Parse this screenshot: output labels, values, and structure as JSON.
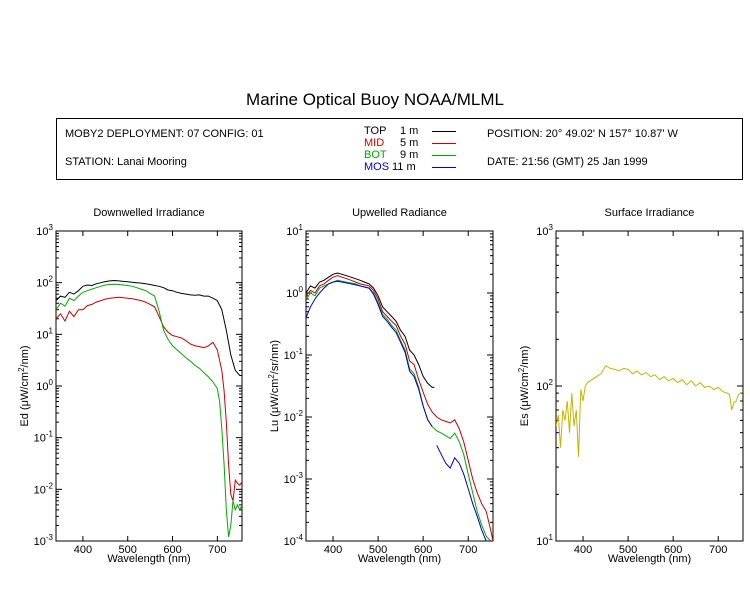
{
  "title": "Marine Optical Buoy NOAA/MLML",
  "info": {
    "deployment": "MOBY2 DEPLOYMENT: 07 CONFIG: 01",
    "station": "STATION: Lanai Mooring",
    "position": "POSITION: 20° 49.02' N   157° 10.87' W",
    "date": "DATE: 21:56 (GMT) 25 Jan 1999"
  },
  "legend": [
    {
      "name": "TOP",
      "depth": "1  m",
      "color": "#000000"
    },
    {
      "name": "MID",
      "depth": "5  m",
      "color": "#cc0000"
    },
    {
      "name": "BOT",
      "depth": "9  m",
      "color": "#00aa00"
    },
    {
      "name": "MOS",
      "depth": "11  m",
      "color": "#0000cc"
    }
  ],
  "chart_data": [
    {
      "type": "line",
      "title": "Downwelled Irradiance",
      "xlabel": "Wavelength (nm)",
      "ylabel_main": "Ed  (",
      "ylabel_mu": "μ",
      "ylabel_rest": "W/cm",
      "ylabel_exp": "2",
      "ylabel_end": "/nm)",
      "xlim": [
        340,
        755
      ],
      "ylim": [
        0.001,
        1000
      ],
      "yscale": "log",
      "xticks": [
        400,
        500,
        600,
        700
      ],
      "yticks": [
        {
          "base": "10",
          "exp": "-3",
          "value": 0.001
        },
        {
          "base": "10",
          "exp": "-2",
          "value": 0.01
        },
        {
          "base": "10",
          "exp": "-1",
          "value": 0.1
        },
        {
          "base": "10",
          "exp": "0",
          "value": 1
        },
        {
          "base": "10",
          "exp": "1",
          "value": 10
        },
        {
          "base": "10",
          "exp": "2",
          "value": 100
        },
        {
          "base": "10",
          "exp": "3",
          "value": 1000
        }
      ],
      "series": [
        {
          "name": "TOP",
          "color": "#000000",
          "x": [
            340,
            350,
            360,
            370,
            380,
            390,
            400,
            410,
            420,
            430,
            440,
            450,
            460,
            470,
            480,
            490,
            500,
            510,
            520,
            530,
            540,
            550,
            560,
            570,
            580,
            590,
            600,
            610,
            620,
            630,
            640,
            650,
            660,
            670,
            680,
            690,
            700,
            710,
            720,
            730,
            740,
            750,
            755
          ],
          "y": [
            45,
            55,
            52,
            65,
            60,
            70,
            85,
            90,
            88,
            95,
            100,
            105,
            108,
            110,
            108,
            106,
            104,
            102,
            100,
            98,
            95,
            92,
            88,
            85,
            80,
            72,
            70,
            65,
            62,
            60,
            58,
            57,
            58,
            55,
            55,
            50,
            45,
            30,
            12,
            4,
            2,
            1.6,
            1.6
          ]
        },
        {
          "name": "MID",
          "color": "#cc0000",
          "x": [
            340,
            350,
            360,
            370,
            380,
            390,
            400,
            410,
            420,
            430,
            440,
            450,
            460,
            470,
            480,
            490,
            500,
            510,
            520,
            530,
            540,
            550,
            560,
            570,
            580,
            590,
            600,
            610,
            620,
            630,
            640,
            650,
            660,
            670,
            680,
            690,
            700,
            710,
            715,
            720,
            725,
            730,
            735,
            740,
            745,
            750,
            755
          ],
          "y": [
            20,
            25,
            18,
            28,
            22,
            30,
            30,
            36,
            38,
            42,
            45,
            48,
            50,
            51,
            52,
            51,
            50,
            49,
            47,
            45,
            42,
            38,
            34,
            22,
            14,
            11,
            9.5,
            9,
            8.5,
            7.5,
            6.5,
            6,
            5.8,
            5.5,
            6,
            7,
            5,
            2,
            0.8,
            0.2,
            0.03,
            0.008,
            0.006,
            0.015,
            0.013,
            0.012,
            0.014
          ]
        },
        {
          "name": "BOT",
          "color": "#00aa00",
          "x": [
            340,
            350,
            360,
            370,
            380,
            390,
            400,
            410,
            420,
            430,
            440,
            450,
            460,
            470,
            480,
            490,
            500,
            510,
            520,
            530,
            540,
            550,
            560,
            570,
            580,
            590,
            600,
            610,
            620,
            630,
            640,
            650,
            660,
            670,
            680,
            690,
            700,
            705,
            710,
            715,
            720,
            725,
            730,
            735,
            740,
            745,
            750,
            755
          ],
          "y": [
            30,
            40,
            35,
            50,
            45,
            55,
            65,
            70,
            75,
            80,
            85,
            90,
            92,
            93,
            92,
            90,
            88,
            85,
            80,
            75,
            70,
            62,
            55,
            28,
            12,
            8,
            6,
            5,
            4.2,
            3.5,
            3,
            2.5,
            2.2,
            1.8,
            1.5,
            1.2,
            0.9,
            0.5,
            0.15,
            0.03,
            0.004,
            0.0012,
            0.002,
            0.006,
            0.004,
            0.005,
            0.004,
            0.005
          ]
        }
      ]
    },
    {
      "type": "line",
      "title": "Upwelled Radiance",
      "xlabel": "Wavelength (nm)",
      "ylabel_main": "Lu  (",
      "ylabel_mu": "μ",
      "ylabel_rest": "W/cm",
      "ylabel_exp": "2",
      "ylabel_end": "/sr/nm)",
      "xlim": [
        340,
        755
      ],
      "ylim": [
        0.0001,
        10
      ],
      "yscale": "log",
      "xticks": [
        400,
        500,
        600,
        700
      ],
      "yticks": [
        {
          "base": "10",
          "exp": "-4",
          "value": 0.0001
        },
        {
          "base": "10",
          "exp": "-3",
          "value": 0.001
        },
        {
          "base": "10",
          "exp": "-2",
          "value": 0.01
        },
        {
          "base": "10",
          "exp": "-1",
          "value": 0.1
        },
        {
          "base": "10",
          "exp": "0",
          "value": 1
        },
        {
          "base": "10",
          "exp": "1",
          "value": 10
        }
      ],
      "series": [
        {
          "name": "TOP",
          "color": "#000000",
          "x": [
            340,
            350,
            360,
            370,
            380,
            390,
            400,
            410,
            420,
            430,
            440,
            450,
            460,
            470,
            480,
            490,
            500,
            510,
            520,
            530,
            540,
            550,
            560,
            570,
            580,
            590,
            600,
            610,
            620,
            625
          ],
          "y": [
            1.0,
            1.3,
            1.2,
            1.5,
            1.6,
            1.8,
            2.0,
            2.1,
            2.0,
            1.9,
            1.8,
            1.7,
            1.6,
            1.5,
            1.4,
            1.2,
            0.9,
            0.6,
            0.5,
            0.42,
            0.35,
            0.25,
            0.2,
            0.12,
            0.1,
            0.07,
            0.045,
            0.035,
            0.03,
            0.03
          ]
        },
        {
          "name": "MID",
          "color": "#cc0000",
          "x": [
            340,
            350,
            360,
            370,
            380,
            390,
            400,
            410,
            420,
            430,
            440,
            450,
            460,
            470,
            480,
            490,
            500,
            510,
            520,
            530,
            540,
            550,
            560,
            570,
            580,
            590,
            600,
            610,
            620,
            630,
            640,
            650,
            660,
            670,
            680,
            690,
            700,
            710,
            720,
            730,
            740,
            750,
            755
          ],
          "y": [
            0.9,
            1.1,
            1.0,
            1.3,
            1.4,
            1.6,
            1.8,
            1.9,
            1.8,
            1.7,
            1.6,
            1.5,
            1.4,
            1.35,
            1.3,
            1.1,
            0.8,
            0.5,
            0.42,
            0.35,
            0.3,
            0.2,
            0.15,
            0.08,
            0.07,
            0.04,
            0.025,
            0.016,
            0.012,
            0.01,
            0.009,
            0.0085,
            0.008,
            0.009,
            0.0065,
            0.004,
            0.002,
            0.001,
            0.0006,
            0.0004,
            0.0003,
            0.00015,
            0.0001
          ]
        },
        {
          "name": "BOT",
          "color": "#00aa00",
          "x": [
            340,
            350,
            360,
            370,
            380,
            390,
            400,
            410,
            420,
            430,
            440,
            450,
            460,
            470,
            480,
            490,
            500,
            510,
            520,
            530,
            540,
            550,
            560,
            570,
            580,
            590,
            600,
            610,
            620,
            630,
            640,
            650,
            660,
            670,
            680,
            690,
            700,
            710,
            720,
            730,
            740,
            750
          ],
          "y": [
            0.8,
            1.0,
            0.9,
            1.2,
            1.3,
            1.4,
            1.5,
            1.6,
            1.55,
            1.5,
            1.45,
            1.4,
            1.3,
            1.25,
            1.2,
            1.0,
            0.7,
            0.45,
            0.38,
            0.3,
            0.25,
            0.17,
            0.12,
            0.06,
            0.05,
            0.03,
            0.015,
            0.009,
            0.007,
            0.006,
            0.0055,
            0.005,
            0.0045,
            0.0055,
            0.004,
            0.0025,
            0.0012,
            0.0006,
            0.0003,
            0.00018,
            0.00012,
            0.0001
          ]
        },
        {
          "name": "MOS",
          "color": "#0000cc",
          "x": [
            340,
            350,
            360,
            370,
            380,
            390,
            400,
            410,
            420,
            430,
            440,
            450,
            460,
            470,
            480,
            490,
            500,
            510,
            520,
            530,
            540,
            550,
            560,
            570,
            580,
            590,
            600,
            610,
            620
          ],
          "y": [
            0.4,
            0.6,
            0.8,
            1.0,
            1.2,
            1.4,
            1.5,
            1.55,
            1.5,
            1.45,
            1.4,
            1.35,
            1.3,
            1.25,
            1.2,
            0.95,
            0.65,
            0.42,
            0.35,
            0.28,
            0.23,
            0.16,
            0.11,
            0.055,
            0.045,
            0.028,
            0.015,
            0.009,
            0.007
          ]
        },
        {
          "name": "MOS",
          "color": "#0000cc",
          "x": [
            630,
            640,
            650,
            660,
            670,
            680,
            690,
            700,
            710,
            720,
            730,
            740,
            750
          ],
          "y": [
            0.0035,
            0.0025,
            0.0018,
            0.0015,
            0.0022,
            0.0018,
            0.0012,
            0.0007,
            0.0004,
            0.00025,
            0.00015,
            0.0001,
            0.0001
          ]
        }
      ]
    },
    {
      "type": "line",
      "title": "Surface Irradiance",
      "xlabel": "Wavelength (nm)",
      "ylabel_main": "Es  (",
      "ylabel_mu": "μ",
      "ylabel_rest": "W/cm",
      "ylabel_exp": "2",
      "ylabel_end": "/nm)",
      "xlim": [
        340,
        755
      ],
      "ylim": [
        10,
        1000
      ],
      "yscale": "log",
      "xticks": [
        400,
        500,
        600,
        700
      ],
      "yticks": [
        {
          "base": "10",
          "exp": "1",
          "value": 10
        },
        {
          "base": "10",
          "exp": "2",
          "value": 100
        },
        {
          "base": "10",
          "exp": "3",
          "value": 1000
        }
      ],
      "series": [
        {
          "name": "Es",
          "color": "#c8b400",
          "x": [
            340,
            345,
            350,
            355,
            360,
            365,
            370,
            375,
            380,
            385,
            390,
            395,
            400,
            405,
            410,
            420,
            430,
            440,
            450,
            460,
            470,
            480,
            490,
            500,
            510,
            520,
            530,
            540,
            550,
            560,
            570,
            580,
            590,
            600,
            610,
            620,
            630,
            640,
            650,
            660,
            670,
            680,
            690,
            700,
            710,
            720,
            725,
            730,
            735,
            740,
            745,
            750,
            755
          ],
          "y": [
            55,
            65,
            40,
            70,
            60,
            80,
            50,
            90,
            55,
            70,
            35,
            95,
            80,
            100,
            105,
            110,
            115,
            120,
            135,
            130,
            128,
            125,
            130,
            128,
            120,
            125,
            118,
            122,
            115,
            118,
            110,
            115,
            108,
            112,
            105,
            110,
            102,
            108,
            100,
            105,
            98,
            100,
            95,
            98,
            92,
            90,
            88,
            70,
            78,
            80,
            88,
            90,
            92
          ]
        }
      ]
    }
  ]
}
